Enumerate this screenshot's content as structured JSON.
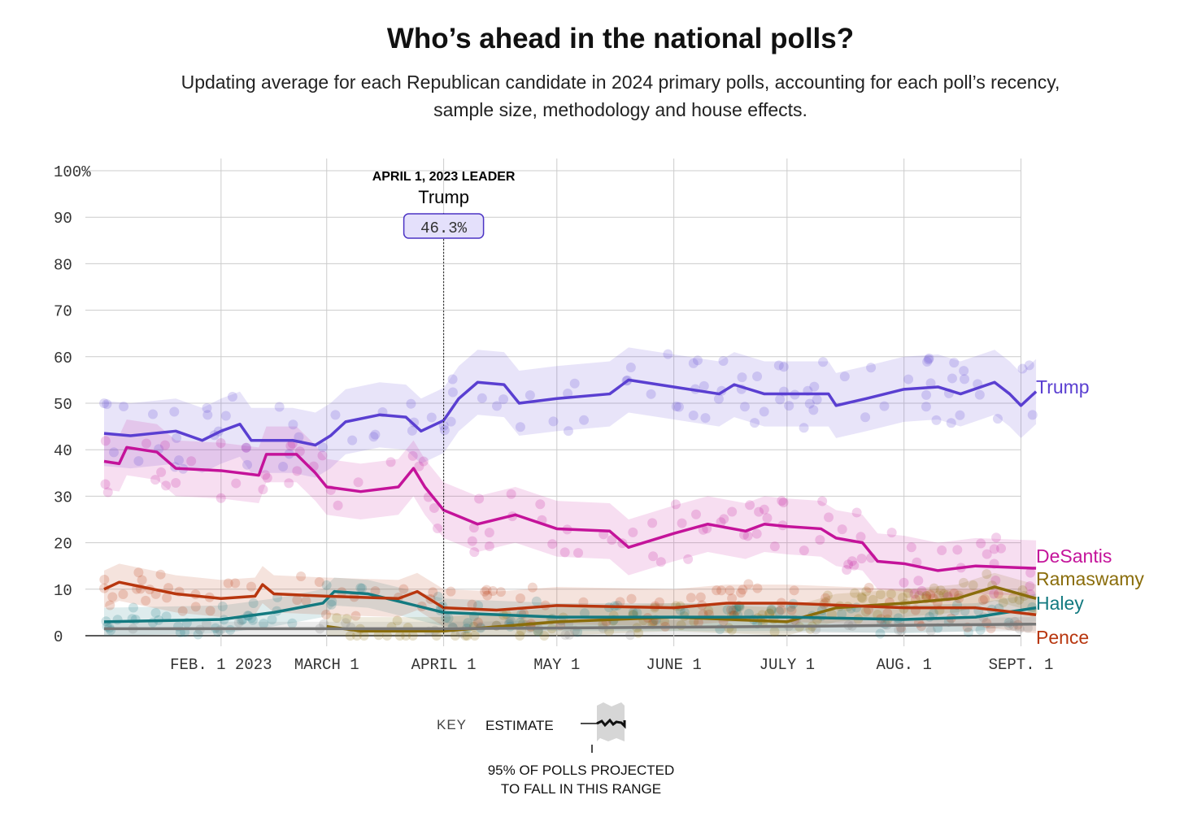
{
  "chart_data": {
    "type": "line",
    "title": "Who’s ahead in the national polls?",
    "subtitle": "Updating average for each Republican candidate in 2024 primary polls, accounting for each poll’s recency, sample size, methodology and house effects.",
    "ylim": [
      0,
      100
    ],
    "yticks": [
      0,
      10,
      20,
      30,
      40,
      50,
      60,
      70,
      80,
      90,
      100
    ],
    "ytick_labels": [
      "0",
      "10",
      "20",
      "30",
      "40",
      "50",
      "60",
      "70",
      "80",
      "90",
      "100%"
    ],
    "xlim": [
      "2023-01-01",
      "2023-09-05"
    ],
    "xticks": [
      "2023-02-01",
      "2023-03-01",
      "2023-04-01",
      "2023-05-01",
      "2023-06-01",
      "2023-07-01",
      "2023-08-01",
      "2023-09-01"
    ],
    "xtick_labels": [
      "FEB. 1 2023",
      "MARCH 1",
      "APRIL 1",
      "MAY 1",
      "JUNE 1",
      "JULY 1",
      "AUG. 1",
      "SEPT. 1"
    ],
    "grid": true,
    "annotation": {
      "date": "2023-04-01",
      "heading": "APRIL 1, 2023 LEADER",
      "name": "Trump",
      "value_label": "46.3%",
      "value": 46.3
    },
    "series": [
      {
        "name": "Trump",
        "color": "#5a3fd1",
        "band": 7,
        "points": [
          [
            "2023-01-01",
            43.5
          ],
          [
            "2023-01-08",
            43
          ],
          [
            "2023-01-20",
            44
          ],
          [
            "2023-01-27",
            42
          ],
          [
            "2023-02-01",
            44
          ],
          [
            "2023-02-06",
            45.5
          ],
          [
            "2023-02-09",
            42
          ],
          [
            "2023-02-20",
            42
          ],
          [
            "2023-02-26",
            41
          ],
          [
            "2023-03-02",
            43
          ],
          [
            "2023-03-06",
            46
          ],
          [
            "2023-03-15",
            47.5
          ],
          [
            "2023-03-22",
            47
          ],
          [
            "2023-03-26",
            44
          ],
          [
            "2023-04-01",
            46.3
          ],
          [
            "2023-04-05",
            51
          ],
          [
            "2023-04-10",
            54.5
          ],
          [
            "2023-04-17",
            54
          ],
          [
            "2023-04-21",
            50
          ],
          [
            "2023-05-01",
            51
          ],
          [
            "2023-05-15",
            52
          ],
          [
            "2023-05-20",
            55
          ],
          [
            "2023-06-01",
            53.5
          ],
          [
            "2023-06-13",
            52
          ],
          [
            "2023-06-17",
            54
          ],
          [
            "2023-06-25",
            52
          ],
          [
            "2023-07-01",
            52
          ],
          [
            "2023-07-12",
            52
          ],
          [
            "2023-07-14",
            49.5
          ],
          [
            "2023-07-22",
            51
          ],
          [
            "2023-08-01",
            53
          ],
          [
            "2023-08-10",
            53.5
          ],
          [
            "2023-08-16",
            52
          ],
          [
            "2023-08-25",
            54.5
          ],
          [
            "2023-08-29",
            52
          ],
          [
            "2023-09-01",
            49.5
          ],
          [
            "2023-09-05",
            52.5
          ]
        ]
      },
      {
        "name": "DeSantis",
        "color": "#c4139a",
        "band": 6,
        "points": [
          [
            "2023-01-01",
            37.5
          ],
          [
            "2023-01-05",
            37
          ],
          [
            "2023-01-07",
            40.5
          ],
          [
            "2023-01-15",
            39.5
          ],
          [
            "2023-01-20",
            36
          ],
          [
            "2023-02-01",
            35.5
          ],
          [
            "2023-02-11",
            34.5
          ],
          [
            "2023-02-13",
            39
          ],
          [
            "2023-02-21",
            39
          ],
          [
            "2023-02-26",
            35
          ],
          [
            "2023-03-01",
            32
          ],
          [
            "2023-03-10",
            31
          ],
          [
            "2023-03-20",
            32
          ],
          [
            "2023-03-24",
            36
          ],
          [
            "2023-03-27",
            32
          ],
          [
            "2023-04-01",
            27
          ],
          [
            "2023-04-10",
            24
          ],
          [
            "2023-04-20",
            26
          ],
          [
            "2023-05-01",
            23
          ],
          [
            "2023-05-15",
            22.5
          ],
          [
            "2023-05-20",
            19
          ],
          [
            "2023-06-01",
            22
          ],
          [
            "2023-06-10",
            24
          ],
          [
            "2023-06-20",
            22.5
          ],
          [
            "2023-06-25",
            24
          ],
          [
            "2023-07-01",
            23.5
          ],
          [
            "2023-07-10",
            23
          ],
          [
            "2023-07-14",
            21
          ],
          [
            "2023-07-21",
            20
          ],
          [
            "2023-07-25",
            16
          ],
          [
            "2023-08-01",
            15.5
          ],
          [
            "2023-08-10",
            14
          ],
          [
            "2023-08-20",
            15
          ],
          [
            "2023-09-05",
            14.5
          ]
        ]
      },
      {
        "name": "Ramaswamy",
        "color": "#8a6d0b",
        "band": 3,
        "points": [
          [
            "2023-03-01",
            2
          ],
          [
            "2023-03-10",
            1
          ],
          [
            "2023-04-01",
            1
          ],
          [
            "2023-05-01",
            3
          ],
          [
            "2023-06-01",
            4
          ],
          [
            "2023-07-01",
            3
          ],
          [
            "2023-07-14",
            6
          ],
          [
            "2023-08-01",
            7
          ],
          [
            "2023-08-15",
            8
          ],
          [
            "2023-08-25",
            10.5
          ],
          [
            "2023-09-05",
            8
          ]
        ]
      },
      {
        "name": "Haley",
        "color": "#137a80",
        "band": 3,
        "points": [
          [
            "2023-01-01",
            3
          ],
          [
            "2023-02-01",
            3.5
          ],
          [
            "2023-02-15",
            5
          ],
          [
            "2023-02-28",
            7
          ],
          [
            "2023-03-03",
            9.5
          ],
          [
            "2023-03-12",
            9
          ],
          [
            "2023-03-22",
            7
          ],
          [
            "2023-04-01",
            5
          ],
          [
            "2023-05-01",
            4
          ],
          [
            "2023-06-01",
            4
          ],
          [
            "2023-07-01",
            4
          ],
          [
            "2023-08-01",
            3.5
          ],
          [
            "2023-08-20",
            4
          ],
          [
            "2023-09-05",
            6
          ]
        ]
      },
      {
        "name": "Pence",
        "color": "#b8360e",
        "band": 4,
        "points": [
          [
            "2023-01-01",
            10
          ],
          [
            "2023-01-05",
            11.5
          ],
          [
            "2023-01-20",
            9
          ],
          [
            "2023-02-01",
            8
          ],
          [
            "2023-02-10",
            8.5
          ],
          [
            "2023-02-12",
            11
          ],
          [
            "2023-02-15",
            9
          ],
          [
            "2023-03-01",
            8.5
          ],
          [
            "2023-03-20",
            8
          ],
          [
            "2023-03-25",
            9.5
          ],
          [
            "2023-04-01",
            6
          ],
          [
            "2023-04-15",
            5.5
          ],
          [
            "2023-05-01",
            6.5
          ],
          [
            "2023-06-01",
            6
          ],
          [
            "2023-06-15",
            7
          ],
          [
            "2023-07-01",
            7
          ],
          [
            "2023-08-01",
            6
          ],
          [
            "2023-08-20",
            6
          ],
          [
            "2023-09-05",
            4.5
          ]
        ]
      },
      {
        "color": "#777777",
        "band": 1.5,
        "points": [
          [
            "2023-01-01",
            1.5
          ],
          [
            "2023-04-01",
            1.5
          ],
          [
            "2023-07-01",
            2
          ],
          [
            "2023-09-05",
            2.5
          ]
        ]
      }
    ]
  },
  "key": {
    "label": "KEY",
    "estimate": "ESTIMATE",
    "range": "95% OF POLLS PROJECTED",
    "range2": "TO FALL IN THIS RANGE"
  }
}
